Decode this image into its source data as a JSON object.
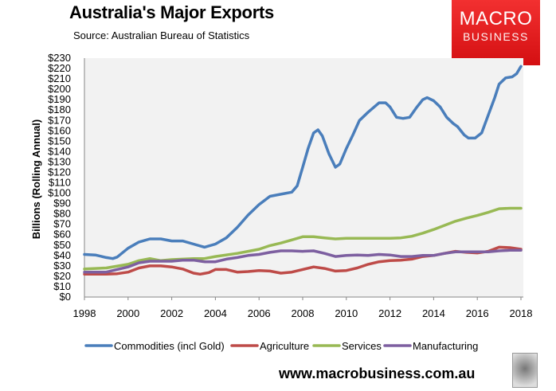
{
  "chart_data": {
    "type": "line",
    "title": "Australia's Major Exports",
    "subtitle": "Source: Australian Bureau of Statistics",
    "ylabel": "Billions (Rolling Annual)",
    "xlabel": "",
    "xlim": [
      1998,
      2018
    ],
    "ylim": [
      0,
      230
    ],
    "x_ticks": [
      "1998",
      "2000",
      "2002",
      "2004",
      "2006",
      "2008",
      "2010",
      "2012",
      "2014",
      "2016",
      "2018"
    ],
    "y_ticks": [
      "$0",
      "$10",
      "$20",
      "$30",
      "$40",
      "$50",
      "$60",
      "$70",
      "$80",
      "$90",
      "$100",
      "$110",
      "$120",
      "$130",
      "$140",
      "$150",
      "$160",
      "$170",
      "$180",
      "$190",
      "$200",
      "$210",
      "$220",
      "$230"
    ],
    "grid": false,
    "legend_position": "bottom",
    "plot_background": "#f2f2f2",
    "series": [
      {
        "name": "Commodities (incl Gold)",
        "color": "#4a7ebb",
        "points": [
          [
            1998,
            41
          ],
          [
            1998.5,
            40.5
          ],
          [
            1999,
            38
          ],
          [
            1999.3,
            37
          ],
          [
            1999.5,
            38.5
          ],
          [
            2000,
            47
          ],
          [
            2000.5,
            53
          ],
          [
            2001,
            56
          ],
          [
            2001.5,
            56
          ],
          [
            2002,
            54
          ],
          [
            2002.5,
            54
          ],
          [
            2003,
            51
          ],
          [
            2003.5,
            48
          ],
          [
            2004,
            51
          ],
          [
            2004.5,
            57
          ],
          [
            2005,
            67
          ],
          [
            2005.5,
            79
          ],
          [
            2006,
            89
          ],
          [
            2006.5,
            97
          ],
          [
            2007,
            99
          ],
          [
            2007.5,
            101
          ],
          [
            2007.75,
            107
          ],
          [
            2008,
            125
          ],
          [
            2008.25,
            143
          ],
          [
            2008.5,
            158
          ],
          [
            2008.7,
            161
          ],
          [
            2008.9,
            155
          ],
          [
            2009.2,
            138
          ],
          [
            2009.5,
            125
          ],
          [
            2009.7,
            128
          ],
          [
            2010,
            143
          ],
          [
            2010.3,
            156
          ],
          [
            2010.6,
            170
          ],
          [
            2011,
            178
          ],
          [
            2011.5,
            187
          ],
          [
            2011.8,
            187
          ],
          [
            2012,
            183
          ],
          [
            2012.3,
            173
          ],
          [
            2012.6,
            172
          ],
          [
            2012.9,
            173
          ],
          [
            2013.2,
            182
          ],
          [
            2013.5,
            190
          ],
          [
            2013.7,
            192
          ],
          [
            2014,
            189
          ],
          [
            2014.3,
            183
          ],
          [
            2014.6,
            173
          ],
          [
            2014.9,
            167
          ],
          [
            2015.1,
            164
          ],
          [
            2015.4,
            156
          ],
          [
            2015.6,
            153
          ],
          [
            2015.9,
            153
          ],
          [
            2016.2,
            158
          ],
          [
            2016.5,
            175
          ],
          [
            2016.8,
            192
          ],
          [
            2017,
            205
          ],
          [
            2017.3,
            211
          ],
          [
            2017.6,
            212
          ],
          [
            2017.8,
            215
          ],
          [
            2018,
            222
          ]
        ]
      },
      {
        "name": "Agriculture",
        "color": "#be4b48",
        "points": [
          [
            1998,
            22
          ],
          [
            1999,
            22
          ],
          [
            1999.5,
            22.5
          ],
          [
            2000,
            24
          ],
          [
            2000.5,
            28
          ],
          [
            2001,
            30
          ],
          [
            2001.5,
            30
          ],
          [
            2002,
            29
          ],
          [
            2002.5,
            27
          ],
          [
            2003,
            23
          ],
          [
            2003.3,
            22
          ],
          [
            2003.7,
            23.5
          ],
          [
            2004,
            26.5
          ],
          [
            2004.5,
            26.5
          ],
          [
            2005,
            24
          ],
          [
            2005.5,
            24.5
          ],
          [
            2006,
            25.5
          ],
          [
            2006.5,
            25
          ],
          [
            2007,
            23
          ],
          [
            2007.5,
            24
          ],
          [
            2008,
            26.5
          ],
          [
            2008.5,
            29
          ],
          [
            2009,
            27.5
          ],
          [
            2009.5,
            25
          ],
          [
            2010,
            25.5
          ],
          [
            2010.5,
            28
          ],
          [
            2011,
            31.5
          ],
          [
            2011.5,
            34
          ],
          [
            2012,
            35
          ],
          [
            2012.5,
            35.5
          ],
          [
            2013,
            36.5
          ],
          [
            2013.5,
            39
          ],
          [
            2014,
            40
          ],
          [
            2014.5,
            42
          ],
          [
            2015,
            44
          ],
          [
            2015.5,
            43
          ],
          [
            2016,
            42.5
          ],
          [
            2016.5,
            44
          ],
          [
            2017,
            48
          ],
          [
            2017.5,
            47.5
          ],
          [
            2018,
            46
          ]
        ]
      },
      {
        "name": "Services",
        "color": "#98b954",
        "points": [
          [
            1998,
            27
          ],
          [
            1999,
            28
          ],
          [
            2000,
            31.5
          ],
          [
            2000.5,
            35
          ],
          [
            2001,
            37
          ],
          [
            2001.5,
            35
          ],
          [
            2002,
            36
          ],
          [
            2003,
            37
          ],
          [
            2003.5,
            37
          ],
          [
            2004,
            39
          ],
          [
            2005,
            42
          ],
          [
            2005.5,
            44
          ],
          [
            2006,
            46
          ],
          [
            2006.5,
            49.5
          ],
          [
            2007,
            52
          ],
          [
            2007.5,
            55
          ],
          [
            2008,
            58
          ],
          [
            2008.5,
            58
          ],
          [
            2009,
            57
          ],
          [
            2009.5,
            56
          ],
          [
            2010,
            56.5
          ],
          [
            2011,
            56.5
          ],
          [
            2012,
            56.5
          ],
          [
            2012.5,
            57
          ],
          [
            2013,
            58.5
          ],
          [
            2013.5,
            61.5
          ],
          [
            2014,
            65
          ],
          [
            2014.5,
            69
          ],
          [
            2015,
            73
          ],
          [
            2015.5,
            76
          ],
          [
            2016,
            78.5
          ],
          [
            2016.5,
            81.5
          ],
          [
            2017,
            85
          ],
          [
            2017.5,
            85.5
          ],
          [
            2018,
            85.5
          ]
        ]
      },
      {
        "name": "Manufacturing",
        "color": "#7d5fa0",
        "points": [
          [
            1998,
            24
          ],
          [
            1999,
            24
          ],
          [
            1999.5,
            26.5
          ],
          [
            2000,
            29
          ],
          [
            2000.5,
            33
          ],
          [
            2001,
            34.5
          ],
          [
            2001.5,
            34.5
          ],
          [
            2002,
            34.5
          ],
          [
            2002.5,
            35.5
          ],
          [
            2003,
            35.5
          ],
          [
            2003.5,
            34
          ],
          [
            2004,
            34
          ],
          [
            2004.5,
            36.5
          ],
          [
            2005,
            38
          ],
          [
            2005.5,
            40
          ],
          [
            2006,
            41
          ],
          [
            2006.5,
            43
          ],
          [
            2007,
            44.5
          ],
          [
            2007.5,
            44.5
          ],
          [
            2008,
            44
          ],
          [
            2008.5,
            44.5
          ],
          [
            2009,
            42
          ],
          [
            2009.5,
            39
          ],
          [
            2010,
            40
          ],
          [
            2010.5,
            40.5
          ],
          [
            2011,
            40
          ],
          [
            2011.5,
            41
          ],
          [
            2012,
            40.5
          ],
          [
            2012.5,
            39
          ],
          [
            2013,
            39
          ],
          [
            2013.5,
            40
          ],
          [
            2014,
            40
          ],
          [
            2014.5,
            42
          ],
          [
            2015,
            43.5
          ],
          [
            2015.5,
            43.5
          ],
          [
            2016,
            43.5
          ],
          [
            2016.5,
            43.5
          ],
          [
            2017,
            44.5
          ],
          [
            2017.5,
            45
          ],
          [
            2018,
            45
          ]
        ]
      }
    ]
  },
  "branding": {
    "logo_line1": "MACRO",
    "logo_line2": "BUSINESS",
    "website": "www.macrobusiness.com.au",
    "logo_color": "#e3191c",
    "wolf_icon": "wolf-head-icon"
  }
}
